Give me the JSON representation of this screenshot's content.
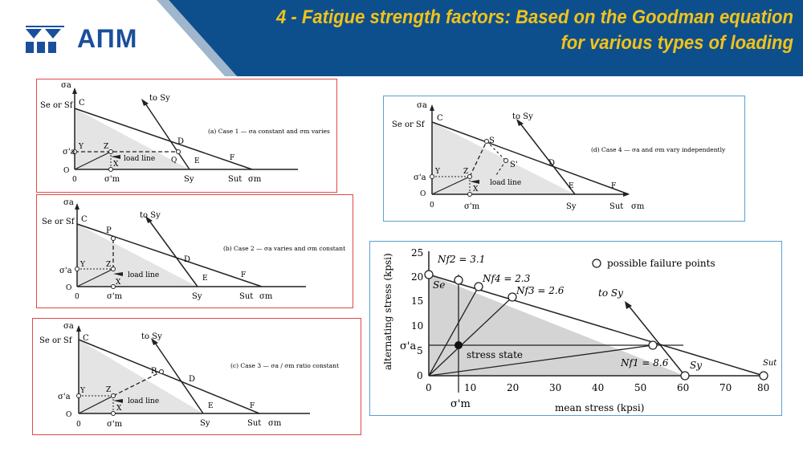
{
  "header": {
    "logo_text": "АПМ",
    "title_line1": "4 - Fatigue strength factors: Based on the Goodman equation",
    "title_line2": "for various types of loading",
    "colors": {
      "band": "#0d4f8c",
      "title": "#f2c21a",
      "logo": "#1a4f9c"
    }
  },
  "common": {
    "sigma_a": "σa",
    "sigma_m": "σm",
    "se_or_sf": "Se or Sf",
    "to_sy": "to Sy",
    "load_line": "load line",
    "sigma_a_prime": "σ'a",
    "sigma_m_prime": "σ'm",
    "C": "C",
    "D": "D",
    "E": "E",
    "F": "F",
    "O": "O",
    "X": "X",
    "Y": "Y",
    "Z": "Z",
    "zero": "0",
    "sy": "Sy",
    "sut": "Sut"
  },
  "case1": {
    "caption": "(a) Case 1 — σa constant and σm varies",
    "Q": "Q"
  },
  "case2": {
    "caption": "(b) Case 2 — σa varies and σm constant",
    "P": "P"
  },
  "case3": {
    "caption": "(c) Case 3 — σa / σm ratio constant",
    "R": "R"
  },
  "case4": {
    "caption": "(d) Case 4 — σa and σm vary independently",
    "S": "S",
    "S_prime": "S'"
  },
  "plot": {
    "legend": "possible failure points",
    "y_label": "alternating stress (kpsi)",
    "x_label": "mean stress (kpsi)",
    "stress_state": "stress state",
    "se": "Se",
    "sy": "Sy",
    "sut": "Sut",
    "to_sy": "to Sy",
    "sigma_a_prime": "σ'a",
    "sigma_m_prime": "σ'm",
    "nf1": "Nf1 = 8.6",
    "nf2": "Nf2 = 3.1",
    "nf3": "Nf3 = 2.6",
    "nf4": "Nf4 = 2.3",
    "x_ticks": [
      "0",
      "10",
      "20",
      "30",
      "40",
      "50",
      "60",
      "70",
      "80"
    ],
    "y_ticks": [
      "0",
      "5",
      "10",
      "15",
      "20",
      "25"
    ]
  }
}
